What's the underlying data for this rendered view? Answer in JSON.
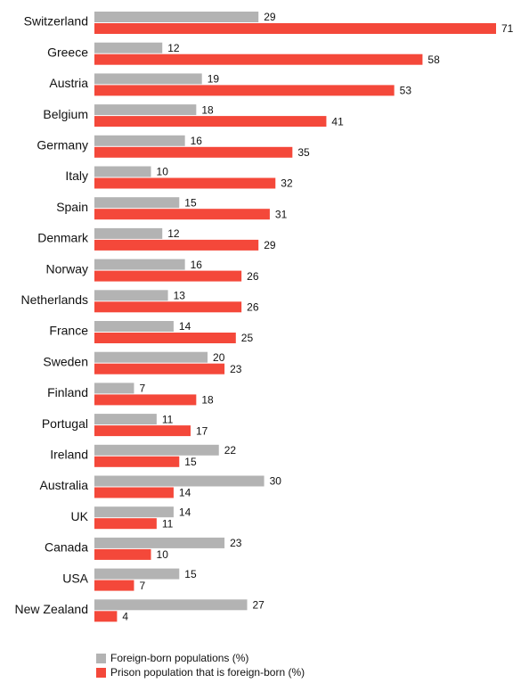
{
  "chart_data": {
    "type": "bar",
    "categories": [
      "Switzerland",
      "Greece",
      "Austria",
      "Belgium",
      "Germany",
      "Italy",
      "Spain",
      "Denmark",
      "Norway",
      "Netherlands",
      "France",
      "Sweden",
      "Finland",
      "Portugal",
      "Ireland",
      "Australia",
      "UK",
      "Canada",
      "USA",
      "New Zealand"
    ],
    "series": [
      {
        "name": "Foreign-born populations (%)",
        "color": "#b3b3b3",
        "values": [
          29,
          12,
          19,
          18,
          16,
          10,
          15,
          12,
          16,
          13,
          14,
          20,
          7,
          11,
          22,
          30,
          14,
          23,
          15,
          27
        ]
      },
      {
        "name": "Prison population that is foreign-born (%)",
        "color": "#f4483a",
        "values": [
          71,
          58,
          53,
          41,
          35,
          32,
          31,
          29,
          26,
          26,
          25,
          23,
          18,
          17,
          15,
          14,
          11,
          10,
          7,
          4
        ]
      }
    ]
  }
}
